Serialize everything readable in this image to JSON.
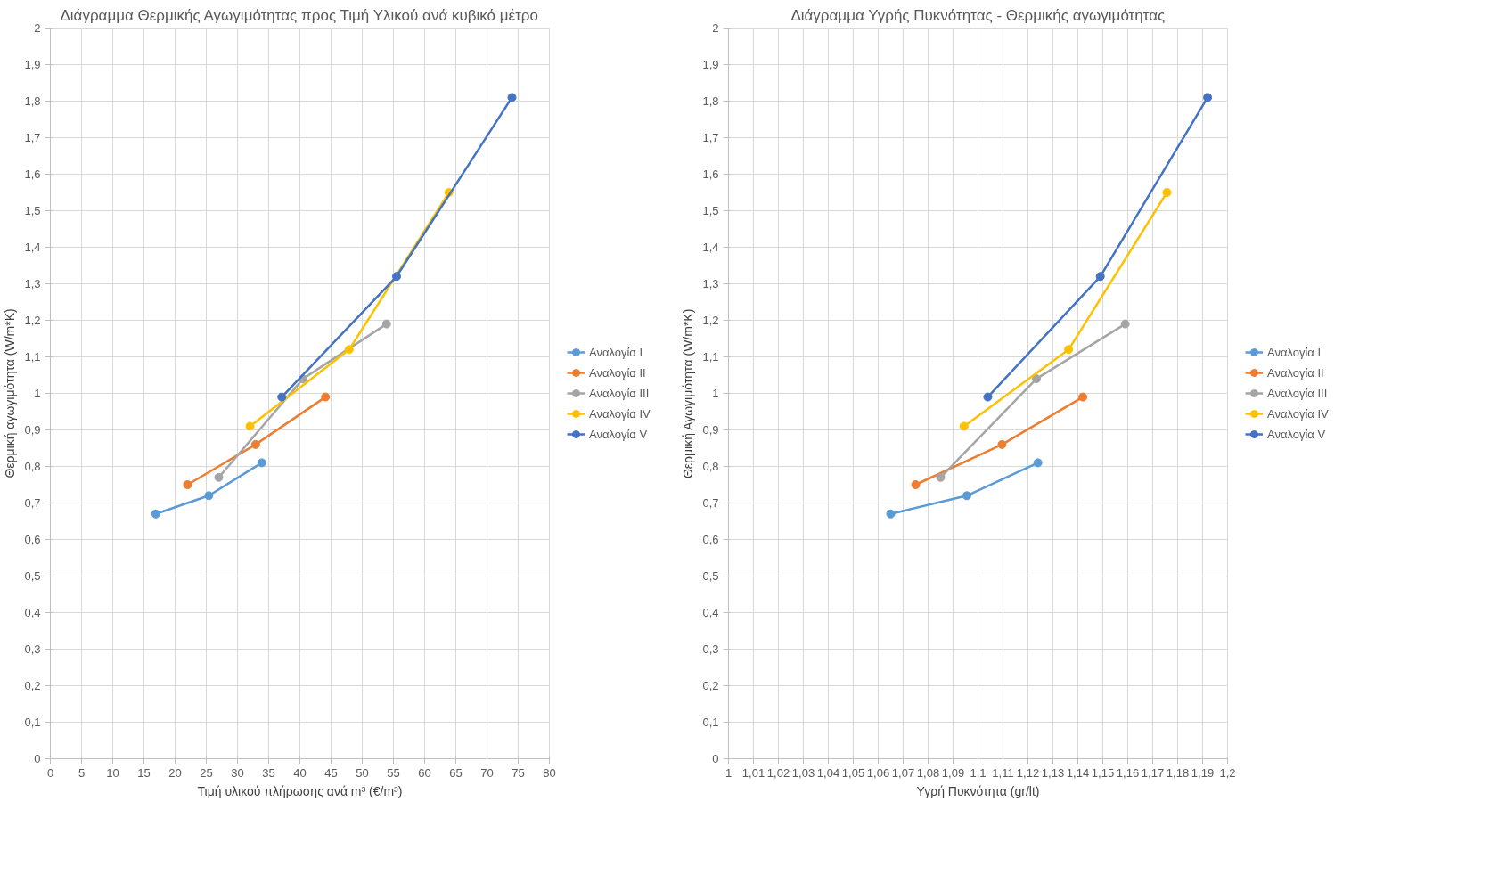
{
  "chart_data": [
    {
      "type": "line",
      "title": "Διάγραμμα Θερμικής Αγωγιμότητας προς Τιμή Υλικού ανά κυβικό μέτρο",
      "xlabel": "Τιμή υλικού πλήρωσης ανά m³ (€/m³)",
      "ylabel": "Θερμική αγωγιμότητα (W/m*K)",
      "marker": "circle",
      "grid": true,
      "legend": "right",
      "xlim": [
        0,
        80
      ],
      "ylim": [
        0,
        2
      ],
      "xticks": [
        0,
        5,
        10,
        15,
        20,
        25,
        30,
        35,
        40,
        45,
        50,
        55,
        60,
        65,
        70,
        75,
        80
      ],
      "yticks": [
        0,
        {
          "value": 0.1,
          "label": "0,1"
        },
        {
          "value": 0.2,
          "label": "0,2"
        },
        {
          "value": 0.3,
          "label": "0,3"
        },
        {
          "value": 0.4,
          "label": "0,4"
        },
        {
          "value": 0.5,
          "label": "0,5"
        },
        {
          "value": 0.6,
          "label": "0,6"
        },
        {
          "value": 0.7,
          "label": "0,7"
        },
        {
          "value": 0.8,
          "label": "0,8"
        },
        {
          "value": 0.9,
          "label": "0,9"
        },
        1,
        {
          "value": 1.1,
          "label": "1,1"
        },
        {
          "value": 1.2,
          "label": "1,2"
        },
        {
          "value": 1.3,
          "label": "1,3"
        },
        {
          "value": 1.4,
          "label": "1,4"
        },
        {
          "value": 1.5,
          "label": "1,5"
        },
        {
          "value": 1.6,
          "label": "1,6"
        },
        {
          "value": 1.7,
          "label": "1,7"
        },
        {
          "value": 1.8,
          "label": "1,8"
        },
        {
          "value": 1.9,
          "label": "1,9"
        },
        2
      ],
      "series": [
        {
          "name": "Αναλογία I",
          "color": "#5b9bd5",
          "x": [
            16.9,
            25.4,
            33.9
          ],
          "values": [
            0.67,
            0.72,
            0.81
          ]
        },
        {
          "name": "Αναλογία II",
          "color": "#ed7d31",
          "x": [
            22.0,
            32.9,
            44.1
          ],
          "values": [
            0.75,
            0.86,
            0.99
          ]
        },
        {
          "name": "Αναλογία III",
          "color": "#a5a5a5",
          "x": [
            27.0,
            40.5,
            53.9
          ],
          "values": [
            0.77,
            1.04,
            1.19
          ]
        },
        {
          "name": "Αναλογία IV",
          "color": "#ffc000",
          "x": [
            32.0,
            47.9,
            63.9
          ],
          "values": [
            0.91,
            1.12,
            1.55
          ]
        },
        {
          "name": "Αναλογία V",
          "color": "#4472c4",
          "x": [
            37.1,
            55.5,
            74.0
          ],
          "values": [
            0.99,
            1.32,
            1.81
          ]
        }
      ]
    },
    {
      "type": "line",
      "title": "Διάγραμμα Υγρής Πυκνότητας - Θερμικής αγωγιμότητας",
      "xlabel": "Υγρή Πυκνότητα (gr/lt)",
      "ylabel": "Θερμική Αγωγιμότητα (W/m*K)",
      "marker": "circle",
      "grid": true,
      "legend": "right",
      "xlim": [
        1,
        1.2
      ],
      "ylim": [
        0,
        2
      ],
      "xticks": [
        1,
        {
          "value": 1.01,
          "label": "1,01"
        },
        {
          "value": 1.02,
          "label": "1,02"
        },
        {
          "value": 1.03,
          "label": "1,03"
        },
        {
          "value": 1.04,
          "label": "1,04"
        },
        {
          "value": 1.05,
          "label": "1,05"
        },
        {
          "value": 1.06,
          "label": "1,06"
        },
        {
          "value": 1.07,
          "label": "1,07"
        },
        {
          "value": 1.08,
          "label": "1,08"
        },
        {
          "value": 1.09,
          "label": "1,09"
        },
        {
          "value": 1.1,
          "label": "1,1"
        },
        {
          "value": 1.11,
          "label": "1,11"
        },
        {
          "value": 1.12,
          "label": "1,12"
        },
        {
          "value": 1.13,
          "label": "1,13"
        },
        {
          "value": 1.14,
          "label": "1,14"
        },
        {
          "value": 1.15,
          "label": "1,15"
        },
        {
          "value": 1.16,
          "label": "1,16"
        },
        {
          "value": 1.17,
          "label": "1,17"
        },
        {
          "value": 1.18,
          "label": "1,18"
        },
        {
          "value": 1.19,
          "label": "1,19"
        },
        {
          "value": 1.2,
          "label": "1,2"
        }
      ],
      "yticks": [
        0,
        {
          "value": 0.1,
          "label": "0,1"
        },
        {
          "value": 0.2,
          "label": "0,2"
        },
        {
          "value": 0.3,
          "label": "0,3"
        },
        {
          "value": 0.4,
          "label": "0,4"
        },
        {
          "value": 0.5,
          "label": "0,5"
        },
        {
          "value": 0.6,
          "label": "0,6"
        },
        {
          "value": 0.7,
          "label": "0,7"
        },
        {
          "value": 0.8,
          "label": "0,8"
        },
        {
          "value": 0.9,
          "label": "0,9"
        },
        1,
        {
          "value": 1.1,
          "label": "1,1"
        },
        {
          "value": 1.2,
          "label": "1,2"
        },
        {
          "value": 1.3,
          "label": "1,3"
        },
        {
          "value": 1.4,
          "label": "1,4"
        },
        {
          "value": 1.5,
          "label": "1,5"
        },
        {
          "value": 1.6,
          "label": "1,6"
        },
        {
          "value": 1.7,
          "label": "1,7"
        },
        {
          "value": 1.8,
          "label": "1,8"
        },
        {
          "value": 1.9,
          "label": "1,9"
        },
        2
      ],
      "series": [
        {
          "name": "Αναλογία I",
          "color": "#5b9bd5",
          "x": [
            1.065,
            1.0955,
            1.124
          ],
          "values": [
            0.67,
            0.72,
            0.81
          ]
        },
        {
          "name": "Αναλογία II",
          "color": "#ed7d31",
          "x": [
            1.075,
            1.1096,
            1.142
          ],
          "values": [
            0.75,
            0.86,
            0.99
          ]
        },
        {
          "name": "Αναλογία III",
          "color": "#a5a5a5",
          "x": [
            1.085,
            1.1234,
            1.159
          ],
          "values": [
            0.77,
            1.04,
            1.19
          ]
        },
        {
          "name": "Αναλογία IV",
          "color": "#ffc000",
          "x": [
            1.0944,
            1.1363,
            1.1757
          ],
          "values": [
            0.91,
            1.12,
            1.55
          ]
        },
        {
          "name": "Αναλογία V",
          "color": "#4472c4",
          "x": [
            1.1039,
            1.149,
            1.192
          ],
          "values": [
            0.99,
            1.32,
            1.81
          ]
        }
      ]
    }
  ]
}
